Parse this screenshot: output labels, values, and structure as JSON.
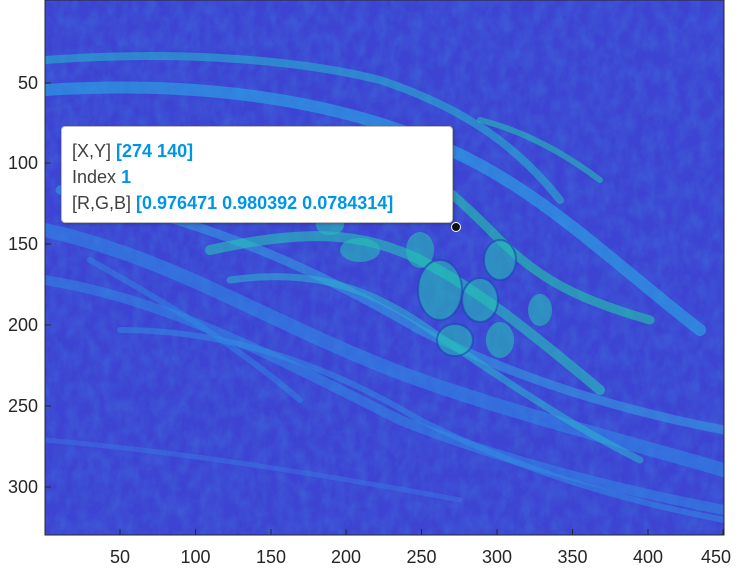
{
  "axes": {
    "x_ticks": [
      "50",
      "100",
      "150",
      "200",
      "250",
      "300",
      "350",
      "400",
      "450"
    ],
    "y_ticks": [
      "50",
      "100",
      "150",
      "200",
      "250",
      "300"
    ]
  },
  "image": {
    "colormap": "parula",
    "description_colors": {
      "background": "#3a3fd0",
      "mid": "#2a7be0",
      "high": "#22c0b0"
    }
  },
  "datatip": {
    "xy_label": "[X,Y]",
    "xy_value": "[274 140]",
    "index_label": "Index",
    "index_value": "1",
    "rgb_label": "[R,G,B]",
    "rgb_value": "[0.976471 0.980392 0.0784314]"
  },
  "colors": {
    "value_text": "#0096e6",
    "label_text": "#404040",
    "axis": "#262626"
  }
}
